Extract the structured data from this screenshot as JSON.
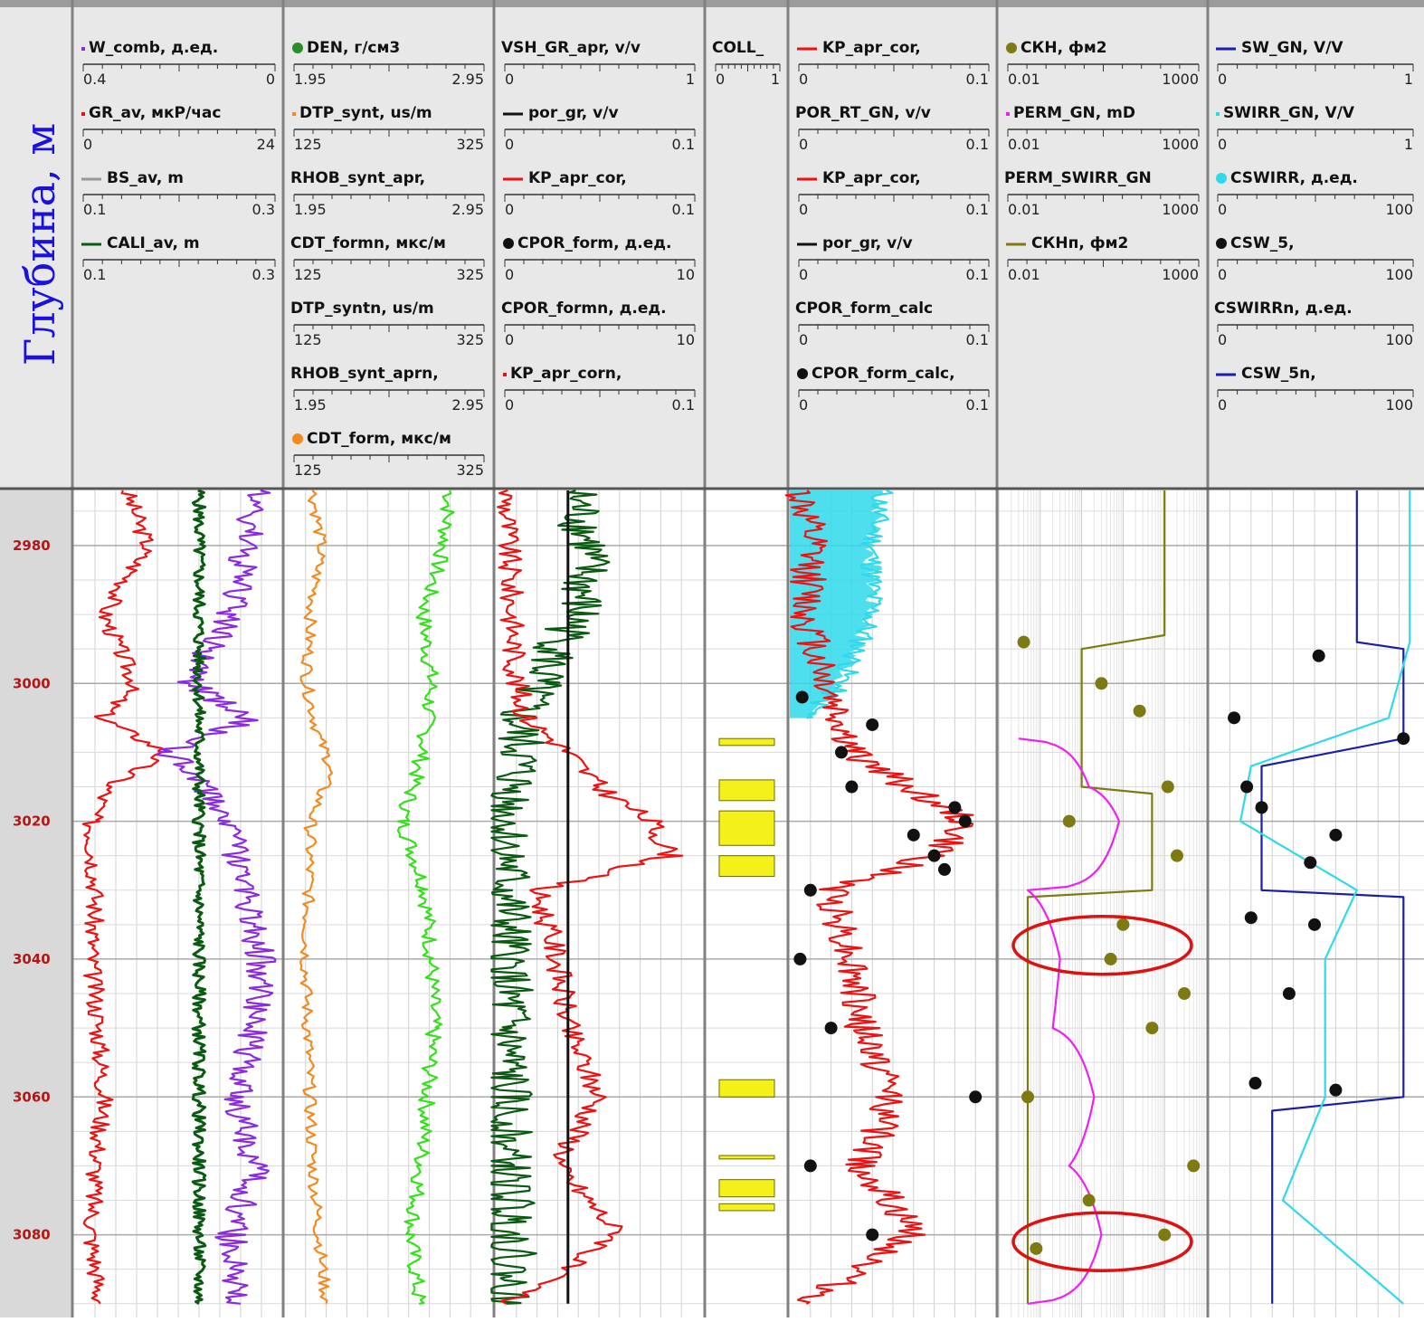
{
  "depth_axis": {
    "title": "Глубина, м",
    "ticks": [
      "2980",
      "3000",
      "3020",
      "3040",
      "3060",
      "3080"
    ],
    "tick_values": [
      2980,
      3000,
      3020,
      3040,
      3060,
      3080
    ],
    "range": [
      2972,
      3092
    ]
  },
  "colors": {
    "red": "#ee1111",
    "purple": "#8a2be2",
    "dark_green": "#0b5a12",
    "green": "#33e01a",
    "orange": "#f38a20",
    "olive": "#7c7a10",
    "cyan": "#2fd9ec",
    "magenta": "#ee20ee",
    "navy": "#1a1ea8",
    "black": "#111111",
    "yellow": "#f4f019",
    "dark_red": "#7a0d0d",
    "depth_label": "#b01818",
    "title_blue": "#1a10e0"
  },
  "tracks": [
    {
      "name": "track-1",
      "curves": [
        {
          "label": "W_comb, д.ед.",
          "min": "0.4",
          "max": "0",
          "color": "#8a2be2",
          "mark": "dot"
        },
        {
          "label": "GR_av, мкР/час",
          "min": "0",
          "max": "24",
          "color": "#ee1111",
          "mark": "dot"
        },
        {
          "label": "BS_av, m",
          "min": "0.1",
          "max": "0.3",
          "color": "#999999",
          "mark": "line"
        },
        {
          "label": "CALI_av, m",
          "min": "0.1",
          "max": "0.3",
          "color": "#0b5a12",
          "mark": "line"
        }
      ]
    },
    {
      "name": "track-2",
      "curves": [
        {
          "label": "DEN, г/см3",
          "min": "1.95",
          "max": "2.95",
          "color": "#2a8f2a",
          "mark": "circle"
        },
        {
          "label": "DTP_synt, us/m",
          "min": "125",
          "max": "325",
          "color": "#f38a20",
          "mark": "dot"
        },
        {
          "label": "RHOB_synt_apr,",
          "min": "1.95",
          "max": "2.95",
          "color": "#33e01a",
          "mark": "none"
        },
        {
          "label": "CDT_formn, мкс/м",
          "min": "125",
          "max": "325",
          "color": "#f38a20",
          "mark": "none"
        },
        {
          "label": "DTP_syntn, us/m",
          "min": "125",
          "max": "325",
          "color": "#f38a20",
          "mark": "none"
        },
        {
          "label": "RHOB_synt_aprn,",
          "min": "1.95",
          "max": "2.95",
          "color": "#33e01a",
          "mark": "none"
        },
        {
          "label": "CDT_form, мкс/м",
          "min": "125",
          "max": "325",
          "color": "#f38a20",
          "mark": "circle"
        }
      ]
    },
    {
      "name": "track-3",
      "curves": [
        {
          "label": "VSH_GR_apr, v/v",
          "min": "0",
          "max": "1",
          "color": "#0b5a12",
          "mark": "none"
        },
        {
          "label": "por_gr, v/v",
          "min": "0",
          "max": "0.1",
          "color": "#111111",
          "mark": "line"
        },
        {
          "label": "KP_apr_cor,",
          "min": "0",
          "max": "0.1",
          "color": "#ee1111",
          "mark": "line"
        },
        {
          "label": "CPOR_form, д.ед.",
          "min": "0",
          "max": "10",
          "color": "#111111",
          "mark": "circle"
        },
        {
          "label": "CPOR_formn, д.ед.",
          "min": "0",
          "max": "10",
          "color": "#111111",
          "mark": "none"
        },
        {
          "label": "KP_apr_corn,",
          "min": "0",
          "max": "0.1",
          "color": "#ee1111",
          "mark": "dot"
        }
      ]
    },
    {
      "name": "track-4",
      "curves": [
        {
          "label": "COLL_",
          "min": "0",
          "max": "1",
          "color": "#f4f019",
          "mark": "none"
        }
      ]
    },
    {
      "name": "track-5",
      "curves": [
        {
          "label": "KP_apr_cor,",
          "min": "0",
          "max": "0.1",
          "color": "#ee1111",
          "mark": "line"
        },
        {
          "label": "POR_RT_GN, v/v",
          "min": "0",
          "max": "0.1",
          "color": "#2fd9ec",
          "mark": "none"
        },
        {
          "label": "KP_apr_cor,",
          "min": "0",
          "max": "0.1",
          "color": "#ee1111",
          "mark": "line"
        },
        {
          "label": "por_gr, v/v",
          "min": "0",
          "max": "0.1",
          "color": "#111111",
          "mark": "line"
        },
        {
          "label": "CPOR_form_calc",
          "min": "0",
          "max": "0.1",
          "color": "#111111",
          "mark": "none"
        },
        {
          "label": "CPOR_form_calc,",
          "min": "0",
          "max": "0.1",
          "color": "#111111",
          "mark": "circle"
        }
      ]
    },
    {
      "name": "track-6",
      "curves": [
        {
          "label": "СКН, фм2",
          "min": "0.01",
          "max": "1000",
          "color": "#7c7a10",
          "mark": "circle"
        },
        {
          "label": "PERM_GN, mD",
          "min": "0.01",
          "max": "1000",
          "color": "#ee20ee",
          "mark": "dot"
        },
        {
          "label": "PERM_SWIRR_GN",
          "min": "0.01",
          "max": "1000",
          "color": "#ee20ee",
          "mark": "none"
        },
        {
          "label": "СКНп, фм2",
          "min": "0.01",
          "max": "1000",
          "color": "#7c7a10",
          "mark": "line"
        }
      ]
    },
    {
      "name": "track-7",
      "curves": [
        {
          "label": "SW_GN, V/V",
          "min": "0",
          "max": "1",
          "color": "#1a1ea8",
          "mark": "line"
        },
        {
          "label": "SWIRR_GN, V/V",
          "min": "0",
          "max": "1",
          "color": "#2fd9ec",
          "mark": "dot"
        },
        {
          "label": "CSWIRR, д.ед.",
          "min": "0",
          "max": "100",
          "color": "#2fd9ec",
          "mark": "circle"
        },
        {
          "label": "CSW_5,",
          "min": "0",
          "max": "100",
          "color": "#111111",
          "mark": "circle"
        },
        {
          "label": "CSWIRRn, д.ед.",
          "min": "0",
          "max": "100",
          "color": "#2fd9ec",
          "mark": "none"
        },
        {
          "label": "CSW_5n,",
          "min": "0",
          "max": "100",
          "color": "#1a1ea8",
          "mark": "line"
        }
      ]
    }
  ],
  "chart_data": {
    "type": "line",
    "subtype": "well-log",
    "depth_unit": "м",
    "depth_range": [
      2972,
      3092
    ],
    "collector_intervals": [
      [
        3008,
        3009
      ],
      [
        3014,
        3017
      ],
      [
        3018.5,
        3023.5
      ],
      [
        3025,
        3028
      ],
      [
        3057.5,
        3060
      ],
      [
        3068.5,
        3069
      ],
      [
        3072,
        3074.5
      ],
      [
        3075.5,
        3076.5
      ]
    ],
    "highlight_ellipses": [
      {
        "track": "track-6",
        "depth_center": 3038
      },
      {
        "track": "track-6",
        "depth_center": 3081
      }
    ],
    "series": [
      {
        "name": "GR_av",
        "track": "track-1",
        "color": "#ee1111",
        "depth": [
          2972,
          2980,
          2990,
          3000,
          3005,
          3010,
          3015,
          3020,
          3030,
          3040,
          3050,
          3060,
          3070,
          3080,
          3090
        ],
        "values": [
          6.0,
          8.5,
          3.5,
          7.0,
          3.2,
          10.5,
          4.0,
          2.0,
          2.5,
          2.0,
          2.8,
          3.5,
          2.5,
          2.0,
          3.0
        ]
      },
      {
        "name": "W_comb",
        "track": "track-1",
        "color": "#8a2be2",
        "depth": [
          2972,
          2980,
          2990,
          3000,
          3005,
          3010,
          3015,
          3020,
          3030,
          3040,
          3050,
          3060,
          3070,
          3080,
          3090
        ],
        "values": [
          0.05,
          0.07,
          0.1,
          0.18,
          0.06,
          0.22,
          0.15,
          0.1,
          0.07,
          0.04,
          0.05,
          0.09,
          0.05,
          0.1,
          0.08
        ]
      },
      {
        "name": "CALI_av",
        "track": "track-1",
        "color": "#0b5a12",
        "depth": [
          2972,
          3000,
          3030,
          3060,
          3090
        ],
        "values": [
          0.22,
          0.22,
          0.22,
          0.22,
          0.22
        ]
      },
      {
        "name": "DTP_synt",
        "track": "track-2",
        "color": "#f38a20",
        "depth": [
          2972,
          2980,
          2990,
          3000,
          3008,
          3012,
          3020,
          3030,
          3040,
          3050,
          3060,
          3070,
          3080,
          3090
        ],
        "values": [
          152,
          160,
          150,
          146,
          158,
          170,
          150,
          148,
          145,
          147,
          149,
          152,
          158,
          165
        ]
      },
      {
        "name": "RHOB_synt_apr",
        "track": "track-2",
        "color": "#33e01a",
        "depth": [
          2972,
          2980,
          2990,
          3000,
          3010,
          3020,
          3030,
          3040,
          3050,
          3060,
          3070,
          3080,
          3090
        ],
        "values": [
          2.75,
          2.72,
          2.62,
          2.66,
          2.62,
          2.52,
          2.63,
          2.66,
          2.67,
          2.64,
          2.61,
          2.56,
          2.6
        ]
      },
      {
        "name": "VSH_GR_apr",
        "track": "track-3",
        "color": "#0b5a12",
        "depth": [
          2972,
          2980,
          2990,
          3000,
          3005,
          3010,
          3020,
          3030,
          3040,
          3050,
          3060,
          3070,
          3080,
          3090
        ],
        "values": [
          0.38,
          0.45,
          0.4,
          0.2,
          0.1,
          0.12,
          0.05,
          0.06,
          0.05,
          0.06,
          0.05,
          0.05,
          0.08,
          0.05
        ]
      },
      {
        "name": "KP_apr_cor",
        "track": "track-3",
        "color": "#ee1111",
        "depth": [
          2972,
          2980,
          2990,
          3000,
          3005,
          3010,
          3015,
          3020,
          3025,
          3030,
          3040,
          3050,
          3060,
          3070,
          3080,
          3090
        ],
        "values": [
          0.005,
          0.006,
          0.008,
          0.01,
          0.015,
          0.035,
          0.05,
          0.075,
          0.085,
          0.02,
          0.03,
          0.035,
          0.05,
          0.03,
          0.06,
          0.005
        ]
      },
      {
        "name": "por_gr",
        "track": "track-3",
        "color": "#111111",
        "depth": [
          2972,
          3090
        ],
        "values": [
          0.035,
          0.035
        ]
      },
      {
        "name": "POR_RT_GN",
        "track": "track-5",
        "color": "#2fd9ec",
        "depth": [
          2972,
          2980,
          2990,
          3000,
          3005
        ],
        "values": [
          0.045,
          0.04,
          0.04,
          0.025,
          0.008
        ]
      },
      {
        "name": "KP_apr_cor_t5",
        "track": "track-5",
        "color": "#ee1111",
        "depth": [
          2972,
          2980,
          2990,
          3000,
          3010,
          3020,
          3025,
          3030,
          3040,
          3050,
          3060,
          3070,
          3080,
          3090
        ],
        "values": [
          0.005,
          0.01,
          0.008,
          0.018,
          0.03,
          0.085,
          0.07,
          0.02,
          0.03,
          0.035,
          0.05,
          0.035,
          0.06,
          0.008
        ]
      },
      {
        "name": "СКНп",
        "track": "track-6",
        "color": "#7c7a10",
        "depth": [
          2972,
          2993,
          2995,
          3015,
          3016,
          3030,
          3031,
          3090
        ],
        "values": [
          100,
          100,
          1.0,
          1.0,
          50,
          50,
          0.05,
          0.05
        ]
      },
      {
        "name": "PERM_GN",
        "track": "track-6",
        "color": "#ee20ee",
        "depth": [
          3008,
          3015,
          3020,
          3025,
          3030,
          3040,
          3050,
          3060,
          3070,
          3080,
          3090
        ],
        "values": [
          0.03,
          1.5,
          8.0,
          4.0,
          0.05,
          0.3,
          0.2,
          2.0,
          0.5,
          3.0,
          0.05
        ]
      },
      {
        "name": "SW_GN",
        "track": "track-7",
        "color": "#1a1ea8",
        "depth": [
          2972,
          2994,
          2995,
          3008,
          3012,
          3030,
          3031,
          3060,
          3062,
          3090
        ],
        "values": [
          0.7,
          0.7,
          0.92,
          0.92,
          0.25,
          0.25,
          0.92,
          0.92,
          0.3,
          0.3
        ]
      },
      {
        "name": "SWIRR_GN",
        "track": "track-7",
        "color": "#2fd9ec",
        "depth": [
          2972,
          2994,
          3005,
          3012,
          3020,
          3030,
          3040,
          3060,
          3075,
          3090
        ],
        "values": [
          0.95,
          0.95,
          0.85,
          0.2,
          0.15,
          0.7,
          0.55,
          0.55,
          0.35,
          0.92
        ]
      },
      {
        "name": "CPOR_form_calc",
        "track": "track-5",
        "color": "#111111",
        "type": "scatter",
        "depth": [
          3002,
          3006,
          3010,
          3015,
          3018,
          3020,
          3022,
          3025,
          3027,
          3030,
          3040,
          3050,
          3060,
          3070,
          3080
        ],
        "values": [
          0.006,
          0.04,
          0.025,
          0.03,
          0.08,
          0.085,
          0.06,
          0.07,
          0.075,
          0.01,
          0.005,
          0.02,
          0.09,
          0.01,
          0.04
        ]
      },
      {
        "name": "СКН",
        "track": "track-6",
        "color": "#7c7a10",
        "type": "scatter",
        "depth": [
          2994,
          3000,
          3004,
          3015,
          3020,
          3025,
          3035,
          3040,
          3045,
          3050,
          3060,
          3070,
          3075,
          3080,
          3082
        ],
        "values": [
          0.04,
          3,
          25,
          120,
          0.5,
          200,
          10,
          5,
          300,
          50,
          0.05,
          500,
          1.5,
          100,
          0.08
        ]
      },
      {
        "name": "CSW_5",
        "track": "track-7",
        "color": "#111111",
        "type": "scatter",
        "depth": [
          2996,
          3005,
          3008,
          3015,
          3018,
          3022,
          3026,
          3034,
          3035,
          3045,
          3058,
          3059
        ],
        "values": [
          52,
          12,
          92,
          18,
          25,
          60,
          48,
          20,
          50,
          38,
          22,
          60
        ]
      }
    ]
  }
}
